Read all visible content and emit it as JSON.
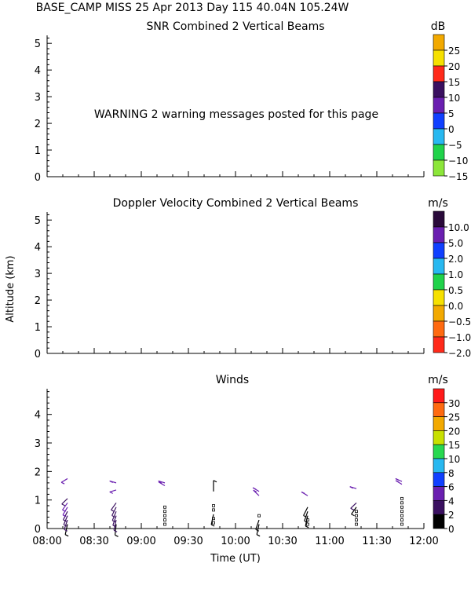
{
  "header": {
    "line": "BASE_CAMP MISS  25 Apr 2013 Day 115 40.04N 105.24W"
  },
  "chart_data": [
    {
      "type": "heatmap",
      "title": "SNR Combined 2 Vertical Beams",
      "ylabel": "",
      "ylim": [
        0,
        5.3
      ],
      "yticks": [
        "0",
        "1",
        "2",
        "3",
        "4",
        "5"
      ],
      "warning": "WARNING  2 warning messages posted for this page",
      "colorbar": {
        "unit": "dB",
        "labels": [
          "25",
          "20",
          "15",
          "10",
          "5",
          "0",
          "−5",
          "−10",
          "−15"
        ],
        "colors": [
          "#f2a900",
          "#f6e000",
          "#ff2a1a",
          "#3a1060",
          "#6a1fb0",
          "#1040ff",
          "#28b8f0",
          "#20d24a",
          "#8ce63a"
        ]
      },
      "values": []
    },
    {
      "type": "heatmap",
      "title": "Doppler Velocity Combined 2 Vertical Beams",
      "ylabel": "Altitude (km)",
      "ylim": [
        0,
        5.3
      ],
      "yticks": [
        "0",
        "1",
        "2",
        "3",
        "4",
        "5"
      ],
      "colorbar": {
        "unit": "m/s",
        "labels": [
          "10.0",
          "5.0",
          "2.0",
          "1.0",
          "0.5",
          "0.0",
          "−0.5",
          "−1.0",
          "−2.0"
        ],
        "colors": [
          "#2a0a3a",
          "#6a1fb0",
          "#1040ff",
          "#28b8f0",
          "#20d24a",
          "#f6e000",
          "#f2a900",
          "#ff6a10",
          "#ff2a1a"
        ]
      },
      "values": []
    },
    {
      "type": "scatter",
      "title": "Winds",
      "xlabel": "Time (UT)",
      "xticks": [
        "08:00",
        "08:30",
        "09:00",
        "09:30",
        "10:00",
        "10:30",
        "11:00",
        "11:30",
        "12:00"
      ],
      "xlim": [
        "08:00",
        "12:00"
      ],
      "ylim": [
        0,
        4.9
      ],
      "yticks": [
        "0",
        "1",
        "2",
        "3",
        "4"
      ],
      "colorbar": {
        "unit": "m/s",
        "labels": [
          "30",
          "25",
          "20",
          "15",
          "10",
          "8",
          "6",
          "4",
          "2",
          "0"
        ],
        "colors": [
          "#ff1a1a",
          "#ff6a10",
          "#f2a900",
          "#c8e000",
          "#28d850",
          "#28b8f0",
          "#1040ff",
          "#6a1fb0",
          "#3a1060",
          "#000000"
        ]
      },
      "profiles": [
        {
          "time": "08:13",
          "heights": [
            0.15,
            0.3,
            0.45,
            0.6,
            0.75,
            0.9,
            1.05
          ],
          "dirs": [
            200,
            210,
            215,
            220,
            225,
            230,
            240
          ],
          "speeds": [
            2,
            3,
            4,
            4,
            5,
            5,
            4
          ],
          "upper": [
            {
              "h": 1.75,
              "dir": 250,
              "spd": 5
            }
          ]
        },
        {
          "time": "08:44",
          "heights": [
            0.15,
            0.3,
            0.45,
            0.6,
            0.75,
            0.9
          ],
          "dirs": [
            190,
            200,
            210,
            215,
            220,
            230
          ],
          "speeds": [
            2,
            3,
            3,
            3,
            4,
            4
          ],
          "upper": [
            {
              "h": 1.35,
              "dir": 260,
              "spd": 5
            },
            {
              "h": 1.6,
              "dir": 280,
              "spd": 5
            }
          ]
        },
        {
          "time": "09:15",
          "heights": [
            0.15,
            0.3,
            0.45,
            0.6,
            0.75
          ],
          "dirs": [
            0,
            0,
            0,
            0,
            0
          ],
          "speeds": [
            0,
            0,
            0,
            0,
            0
          ],
          "upper": [
            {
              "h": 1.5,
              "dir": 290,
              "spd": 6
            },
            {
              "h": 1.6,
              "dir": 280,
              "spd": 5
            }
          ]
        },
        {
          "time": "09:46",
          "heights": [
            0.2,
            0.35,
            0.5,
            0.65,
            0.8
          ],
          "dirs": [
            0,
            0,
            200,
            0,
            0
          ],
          "speeds": [
            0,
            0,
            1,
            0,
            0
          ],
          "upper": [
            {
              "h": 1.3,
              "dir": 0,
              "spd": 2
            }
          ]
        },
        {
          "time": "10:15",
          "heights": [
            0.15,
            0.3,
            0.45
          ],
          "dirs": [
            200,
            210,
            0
          ],
          "speeds": [
            2,
            2,
            0
          ],
          "upper": [
            {
              "h": 1.15,
              "dir": 300,
              "spd": 6
            },
            {
              "h": 1.3,
              "dir": 290,
              "spd": 5
            }
          ]
        },
        {
          "time": "10:46",
          "heights": [
            0.15,
            0.3,
            0.45,
            0.6,
            0.75
          ],
          "dirs": [
            0,
            0,
            200,
            210,
            220
          ],
          "speeds": [
            0,
            0,
            1,
            2,
            2
          ],
          "upper": [
            {
              "h": 1.15,
              "dir": 290,
              "spd": 6
            }
          ]
        },
        {
          "time": "11:17",
          "heights": [
            0.15,
            0.3,
            0.45,
            0.6,
            0.75,
            0.9
          ],
          "dirs": [
            0,
            0,
            0,
            0,
            230,
            240
          ],
          "speeds": [
            0,
            0,
            0,
            0,
            2,
            3
          ],
          "upper": [
            {
              "h": 1.4,
              "dir": 280,
              "spd": 6
            }
          ]
        },
        {
          "time": "11:46",
          "heights": [
            0.15,
            0.3,
            0.45,
            0.6,
            0.75,
            0.9,
            1.05
          ],
          "dirs": [
            0,
            0,
            0,
            0,
            0,
            0,
            0
          ],
          "speeds": [
            0,
            0,
            0,
            0,
            0,
            0,
            0
          ],
          "upper": [
            {
              "h": 1.65,
              "dir": 285,
              "spd": 6
            },
            {
              "h": 1.55,
              "dir": 290,
              "spd": 6
            }
          ]
        }
      ]
    }
  ]
}
